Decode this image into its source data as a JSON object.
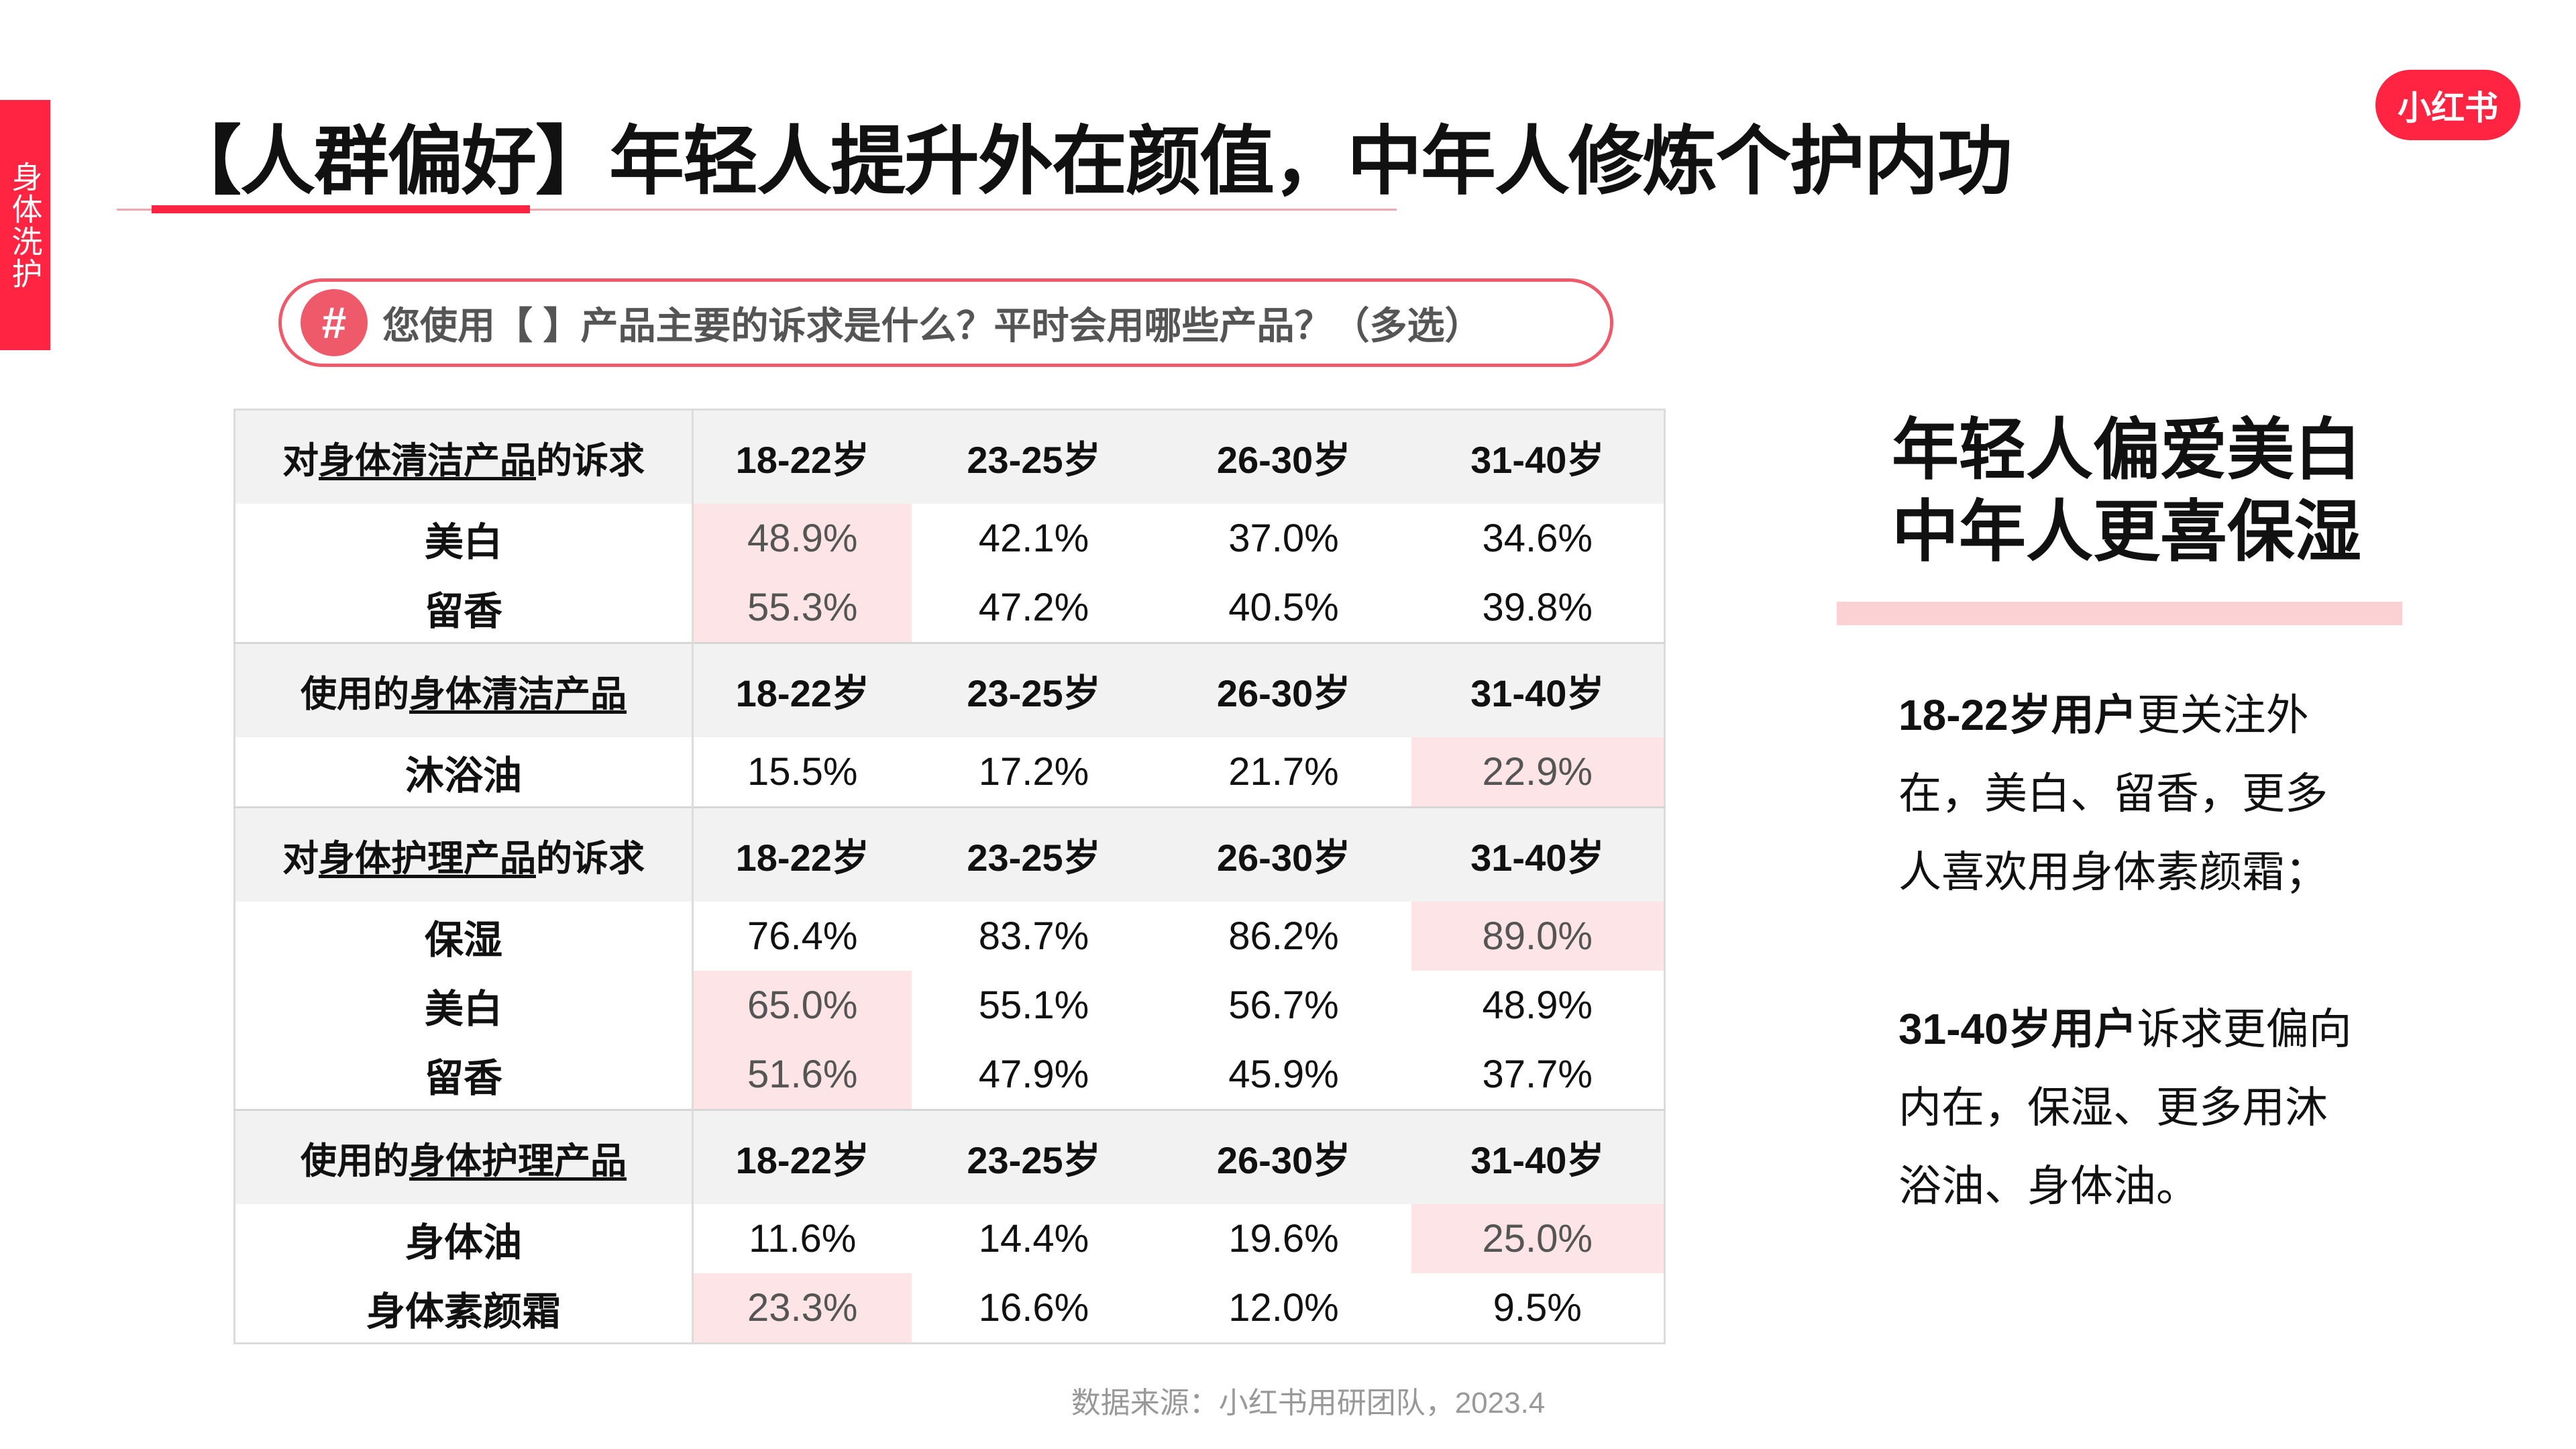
{
  "side_tab": "身体洗护",
  "title": "【人群偏好】年轻人提升外在颜值，中年人修炼个护内功",
  "logo": "小红书",
  "question": {
    "icon": "#",
    "text": "您使用【 】产品主要的诉求是什么？平时会用哪些产品？（多选）"
  },
  "colors": {
    "brand": "#ff2442",
    "highlight": "#fde4e6",
    "header_bg": "#f2f2f2",
    "accent_bar": "#fbd1d3"
  },
  "table": {
    "sections": [
      {
        "header": {
          "pre": "对",
          "u": "身体清洁产品",
          "post": "的诉求"
        },
        "ages": [
          "18-22岁",
          "23-25岁",
          "26-30岁",
          "31-40岁"
        ],
        "rows": [
          {
            "label": "美白",
            "values": [
              "48.9%",
              "42.1%",
              "37.0%",
              "34.6%"
            ],
            "highlight": 0
          },
          {
            "label": "留香",
            "values": [
              "55.3%",
              "47.2%",
              "40.5%",
              "39.8%"
            ],
            "highlight": 0
          }
        ]
      },
      {
        "header": {
          "pre": "使用的",
          "u": "身体清洁产品",
          "post": ""
        },
        "ages": [
          "18-22岁",
          "23-25岁",
          "26-30岁",
          "31-40岁"
        ],
        "rows": [
          {
            "label": "沐浴油",
            "values": [
              "15.5%",
              "17.2%",
              "21.7%",
              "22.9%"
            ],
            "highlight": 3
          }
        ]
      },
      {
        "header": {
          "pre": "对",
          "u": "身体护理产品",
          "post": "的诉求"
        },
        "ages": [
          "18-22岁",
          "23-25岁",
          "26-30岁",
          "31-40岁"
        ],
        "rows": [
          {
            "label": "保湿",
            "values": [
              "76.4%",
              "83.7%",
              "86.2%",
              "89.0%"
            ],
            "highlight": 3
          },
          {
            "label": "美白",
            "values": [
              "65.0%",
              "55.1%",
              "56.7%",
              "48.9%"
            ],
            "highlight": 0
          },
          {
            "label": "留香",
            "values": [
              "51.6%",
              "47.9%",
              "45.9%",
              "37.7%"
            ],
            "highlight": 0
          }
        ]
      },
      {
        "header": {
          "pre": "使用的",
          "u": "身体护理产品",
          "post": ""
        },
        "ages": [
          "18-22岁",
          "23-25岁",
          "26-30岁",
          "31-40岁"
        ],
        "rows": [
          {
            "label": "身体油",
            "values": [
              "11.6%",
              "14.4%",
              "19.6%",
              "25.0%"
            ],
            "highlight": 3
          },
          {
            "label": "身体素颜霜",
            "values": [
              "23.3%",
              "16.6%",
              "12.0%",
              "9.5%"
            ],
            "highlight": 0
          }
        ]
      }
    ]
  },
  "source": "数据来源：小红书用研团队，2023.4",
  "summary": {
    "heading_line1": "年轻人偏爱美白",
    "heading_line2": "中年人更喜保湿",
    "para1_bold": "18-22岁用户",
    "para1_text": "更关注外在，美白、留香，更多人喜欢用身体素颜霜；",
    "para2_bold": "31-40岁用户",
    "para2_text": "诉求更偏向内在，保湿、更多用沐浴油、身体油。"
  }
}
